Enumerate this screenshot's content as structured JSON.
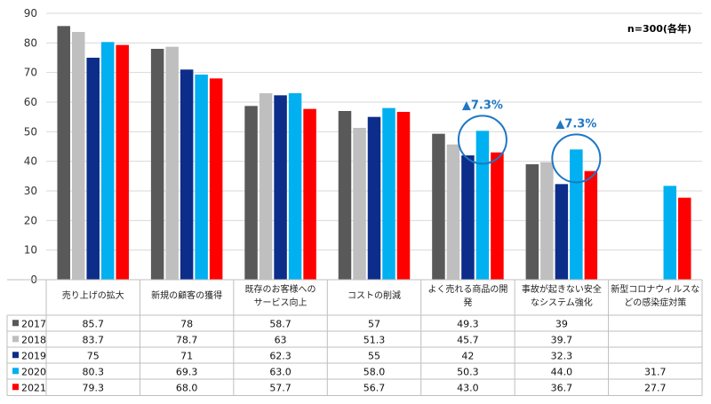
{
  "chart_data": {
    "type": "bar",
    "note": "n=300(各年)",
    "ylim": [
      0,
      90
    ],
    "yticks": [
      0,
      10,
      20,
      30,
      40,
      50,
      60,
      70,
      80,
      90
    ],
    "categories": [
      [
        "売り上げの拡大"
      ],
      [
        "新規の顧客の獲得"
      ],
      [
        "既存のお客様への",
        "サービス向上"
      ],
      [
        "コストの削減"
      ],
      [
        "よく売れる商品の開",
        "発"
      ],
      [
        "事故が起きない安全",
        "なシステム強化"
      ],
      [
        "新型コロナウィルスな",
        "どの感染症対策"
      ]
    ],
    "series": [
      {
        "name": "2017",
        "color": "#595959",
        "values": [
          85.7,
          78,
          58.7,
          57,
          49.3,
          39,
          null
        ],
        "labels": [
          "85.7",
          "78",
          "58.7",
          "57",
          "49.3",
          "39",
          ""
        ]
      },
      {
        "name": "2018",
        "color": "#bfbfbf",
        "values": [
          83.7,
          78.7,
          63,
          51.3,
          45.7,
          39.7,
          null
        ],
        "labels": [
          "83.7",
          "78.7",
          "63",
          "51.3",
          "45.7",
          "39.7",
          ""
        ]
      },
      {
        "name": "2019",
        "color": "#0d2d8a",
        "values": [
          75,
          71,
          62.3,
          55,
          42,
          32.3,
          null
        ],
        "labels": [
          "75",
          "71",
          "62.3",
          "55",
          "42",
          "32.3",
          ""
        ]
      },
      {
        "name": "2020",
        "color": "#00b0f0",
        "values": [
          80.3,
          69.3,
          63.0,
          58.0,
          50.3,
          44.0,
          31.7
        ],
        "labels": [
          "80.3",
          "69.3",
          "63.0",
          "58.0",
          "50.3",
          "44.0",
          "31.7"
        ]
      },
      {
        "name": "2021",
        "color": "#ff0000",
        "values": [
          79.3,
          68.0,
          57.7,
          56.7,
          43.0,
          36.7,
          27.7
        ],
        "labels": [
          "79.3",
          "68.0",
          "57.7",
          "56.7",
          "43.0",
          "36.7",
          "27.7"
        ]
      }
    ],
    "annotations": [
      {
        "text": "▲7.3%",
        "category": 4,
        "series": 3
      },
      {
        "text": "▲7.3%",
        "category": 5,
        "series": 3
      }
    ],
    "annotation_color": "#1f77c4",
    "grid": true,
    "data_table": true
  }
}
